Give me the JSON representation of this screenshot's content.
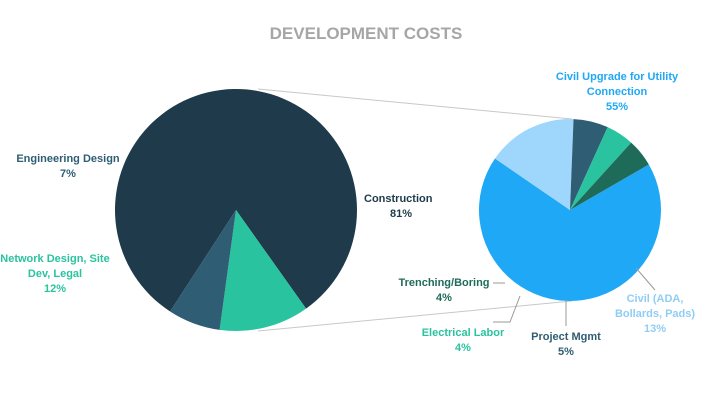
{
  "chart_data": [
    {
      "type": "pie",
      "title": "DEVELOPMENT COSTS",
      "slices": [
        {
          "label_lines": [
            "Construction"
          ],
          "value": 81,
          "value_label": "81%",
          "color": "#1f3a4a",
          "label_color": "#1f3a4a"
        },
        {
          "label_lines": [
            "Network Design, Site",
            "Dev, Legal"
          ],
          "value": 12,
          "value_label": "12%",
          "color": "#2ac3a0",
          "label_color": "#2ac3a0"
        },
        {
          "label_lines": [
            "Engineering Design"
          ],
          "value": 7,
          "value_label": "7%",
          "color": "#2f5d73",
          "label_color": "#2f5d73"
        }
      ]
    },
    {
      "type": "pie",
      "exploded_from": "Construction",
      "slices": [
        {
          "label_lines": [
            "Civil Upgrade for Utility",
            "Connection"
          ],
          "value": 55,
          "value_label": "55%",
          "color": "#1fa8f5",
          "label_color": "#1fa8f5"
        },
        {
          "label_lines": [
            "Civil (ADA,",
            "Bollards, Pads)"
          ],
          "value": 13,
          "value_label": "13%",
          "color": "#9fd6fb",
          "label_color": "#8fcdf5"
        },
        {
          "label_lines": [
            "Project Mgmt"
          ],
          "value": 5,
          "value_label": "5%",
          "color": "#2f5d73",
          "label_color": "#2f5d73"
        },
        {
          "label_lines": [
            "Electrical Labor"
          ],
          "value": 4,
          "value_label": "4%",
          "color": "#2ac3a0",
          "label_color": "#2ac3a0"
        },
        {
          "label_lines": [
            "Trenching/Boring"
          ],
          "value": 4,
          "value_label": "4%",
          "color": "#1e6b5a",
          "label_color": "#1e6b5a"
        }
      ]
    }
  ],
  "title_color": "#a6a6a6",
  "connector_color": "#c8c8c8"
}
